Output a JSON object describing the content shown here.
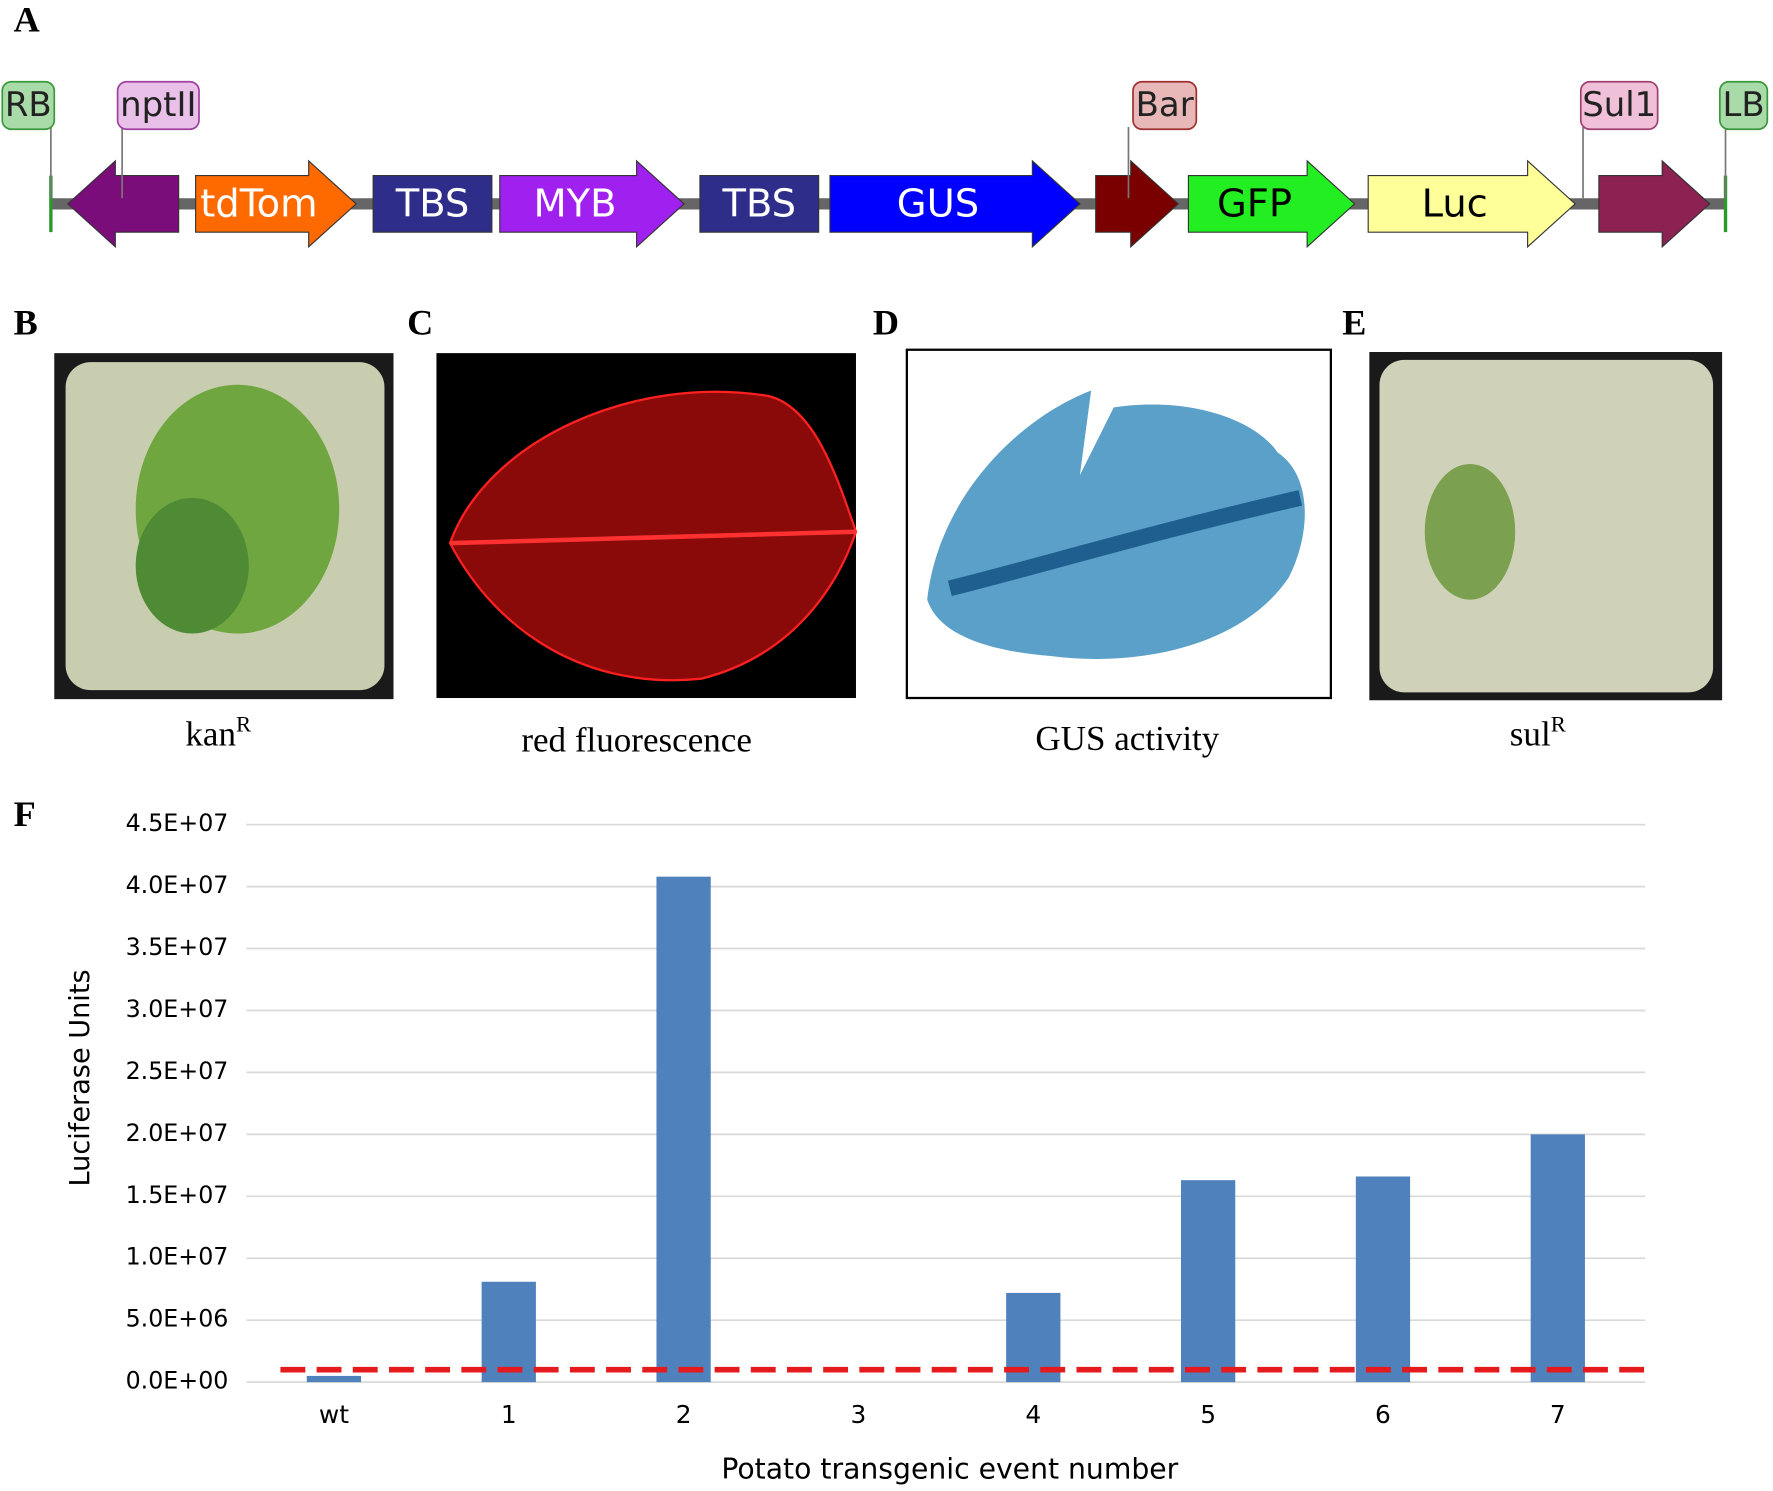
{
  "panels": {
    "a": "A",
    "b": "B",
    "c": "C",
    "d": "D",
    "e": "E",
    "f": "F"
  },
  "construct": {
    "tags": [
      "RB",
      "nptII",
      "Bar",
      "Sul1",
      "LB"
    ],
    "elements": [
      "tdTom",
      "TBS",
      "MYB",
      "TBS",
      "GUS",
      "GFP",
      "Luc"
    ]
  },
  "captions": {
    "b": {
      "text": "kan",
      "sup": "R"
    },
    "c": {
      "text": "red fluorescence"
    },
    "d": {
      "text": "GUS activity"
    },
    "e": {
      "text": "sul",
      "sup": "R"
    }
  },
  "chart_data": {
    "type": "bar",
    "y_label": "Luciferase Units",
    "x_label": "Potato transgenic event number",
    "categories": [
      "wt",
      "1",
      "2",
      "3",
      "4",
      "5",
      "6",
      "7"
    ],
    "values": [
      500000,
      8100000,
      40800000,
      0,
      7200000,
      16300000,
      16600000,
      20000000
    ],
    "color": "#4f81bd",
    "ylim": [
      0,
      45000000
    ],
    "yticks": [
      {
        "value": 0,
        "label": "0.0E+00"
      },
      {
        "value": 5000000,
        "label": "5.0E+06"
      },
      {
        "value": 10000000,
        "label": "1.0E+07"
      },
      {
        "value": 15000000,
        "label": "1.5E+07"
      },
      {
        "value": 20000000,
        "label": "2.0E+07"
      },
      {
        "value": 25000000,
        "label": "2.5E+07"
      },
      {
        "value": 30000000,
        "label": "3.0E+07"
      },
      {
        "value": 35000000,
        "label": "3.5E+07"
      },
      {
        "value": 40000000,
        "label": "4.0E+07"
      },
      {
        "value": 45000000,
        "label": "4.5E+07"
      }
    ],
    "grid": true,
    "reference_line": {
      "value": 1000000,
      "color": "#e41a1c"
    }
  }
}
